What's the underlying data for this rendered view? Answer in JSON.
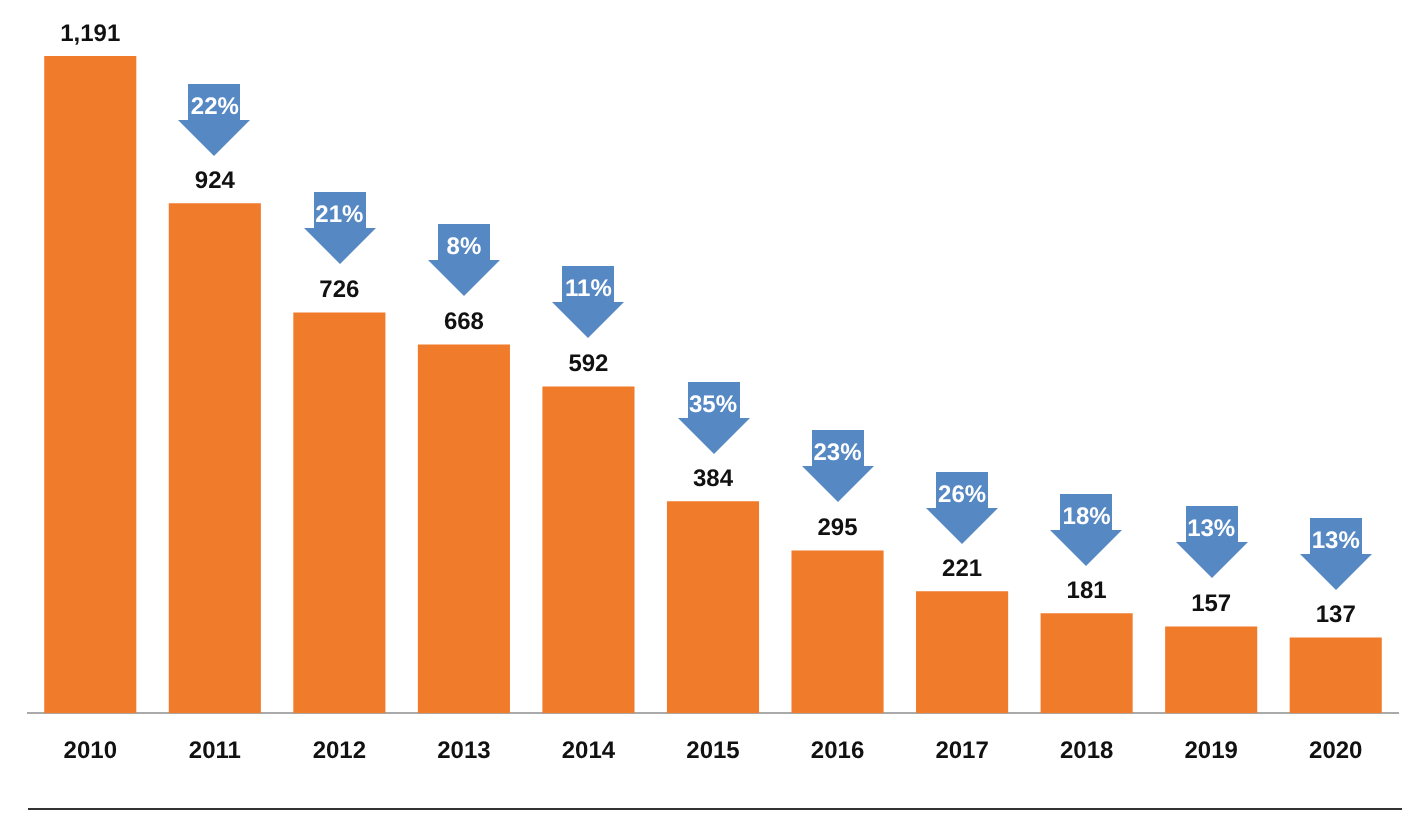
{
  "chart_data": {
    "type": "bar",
    "categories": [
      "2010",
      "2011",
      "2012",
      "2013",
      "2014",
      "2015",
      "2016",
      "2017",
      "2018",
      "2019",
      "2020"
    ],
    "values": [
      1191,
      924,
      726,
      668,
      592,
      384,
      295,
      221,
      181,
      157,
      137
    ],
    "color": "#f07b2b",
    "data_labels": true,
    "value_labels": [
      "1,191",
      "924",
      "726",
      "668",
      "592",
      "384",
      "295",
      "221",
      "181",
      "157",
      "137"
    ],
    "grid": false,
    "legend": false,
    "annotations": [
      "22%",
      "21%",
      "8%",
      "11%",
      "35%",
      "23%",
      "26%",
      "18%",
      "13%",
      "13%"
    ]
  }
}
